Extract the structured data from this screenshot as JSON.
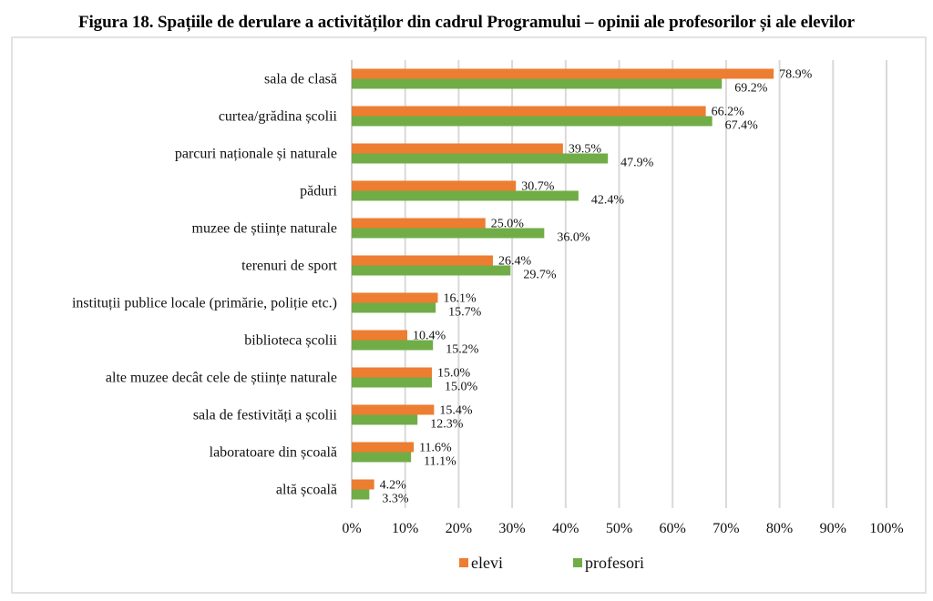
{
  "chart_data": {
    "type": "bar",
    "orientation": "horizontal",
    "title": "Figura 18. Spațiile de derulare a activităților din cadrul Programului – opinii ale profesorilor și ale elevilor",
    "xlabel": "",
    "ylabel": "",
    "xlim": [
      0,
      100
    ],
    "x_ticks": [
      "0%",
      "10%",
      "20%",
      "30%",
      "40%",
      "50%",
      "60%",
      "70%",
      "80%",
      "90%",
      "100%"
    ],
    "grid": "vertical",
    "legend_position": "bottom",
    "categories": [
      "sala de clasă",
      "curtea/grădina școlii",
      "parcuri naționale și naturale",
      "păduri",
      "muzee de științe naturale",
      "terenuri de sport",
      "instituții publice locale (primărie, poliție etc.)",
      "biblioteca școlii",
      "alte muzee decât cele de științe naturale",
      "sala de festivități a școlii",
      "laboratoare din școală",
      "altă școală"
    ],
    "series": [
      {
        "name": "elevi",
        "color": "#ED7D31",
        "values": [
          78.9,
          66.2,
          39.5,
          30.7,
          25.0,
          26.4,
          16.1,
          10.4,
          15.0,
          15.4,
          11.6,
          4.2
        ],
        "labels": [
          "78.9%",
          "66.2%",
          "39.5%",
          "30.7%",
          "25.0%",
          "26.4%",
          "16.1%",
          "10.4%",
          "15.0%",
          "15.4%",
          "11.6%",
          "4.2%"
        ]
      },
      {
        "name": "profesori",
        "color": "#70AD47",
        "values": [
          69.2,
          67.4,
          47.9,
          42.4,
          36.0,
          29.7,
          15.7,
          15.2,
          15.0,
          12.3,
          11.1,
          3.3
        ],
        "labels": [
          "69.2%",
          "67.4%",
          "47.9%",
          "42.4%",
          "36.0%",
          "29.7%",
          "15.7%",
          "15.2%",
          "15.0%",
          "12.3%",
          "11.1%",
          "3.3%"
        ]
      }
    ]
  }
}
